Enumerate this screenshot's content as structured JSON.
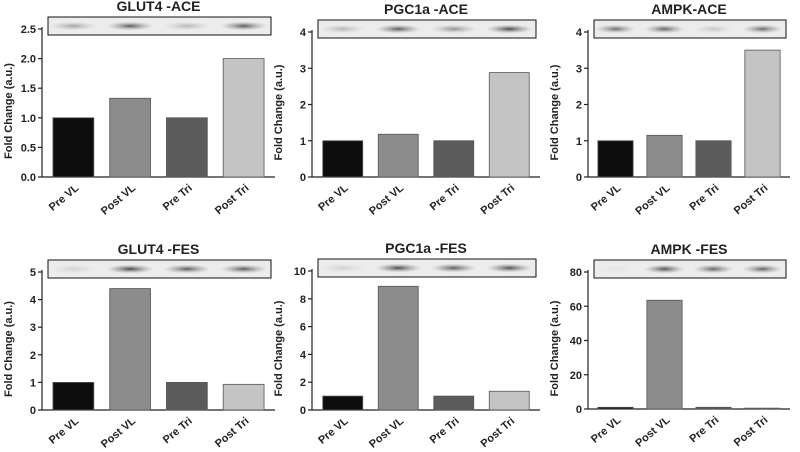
{
  "chart_data": [
    {
      "type": "bar",
      "title": "GLUT4 -ACE",
      "y_label": "Fold Change (a.u.)",
      "categories": [
        "Pre VL",
        "Post VL",
        "Pre Tri",
        "Post Tri"
      ],
      "values": [
        1.0,
        1.33,
        1.0,
        2.0
      ],
      "colors": [
        "#0d0d0d",
        "#8c8c8c",
        "#5c5c5c",
        "#c4c4c4"
      ],
      "ylim": [
        0,
        2.5
      ],
      "yticks": [
        {
          "value": 0,
          "label": "0.0"
        },
        0.5,
        {
          "value": 1,
          "label": "1.0"
        },
        1.5,
        {
          "value": 2,
          "label": "2.0"
        },
        2.5
      ]
    },
    {
      "type": "bar",
      "title": "PGC1a -ACE",
      "y_label": "Fold Change (a.u.)",
      "categories": [
        "Pre VL",
        "Post VL",
        "Pre Tri",
        "Post Tri"
      ],
      "values": [
        1.0,
        1.18,
        1.0,
        2.88
      ],
      "colors": [
        "#0d0d0d",
        "#8c8c8c",
        "#5c5c5c",
        "#c4c4c4"
      ],
      "ylim": [
        0,
        4
      ],
      "yticks": [
        0,
        1,
        2,
        3,
        4
      ]
    },
    {
      "type": "bar",
      "title": "AMPK-ACE",
      "y_label": "Fold Change (a.u.)",
      "categories": [
        "Pre VL",
        "Post VL",
        "Pre Tri",
        "Post Tri"
      ],
      "values": [
        1.0,
        1.15,
        1.0,
        3.5
      ],
      "colors": [
        "#0d0d0d",
        "#8c8c8c",
        "#5c5c5c",
        "#c4c4c4"
      ],
      "ylim": [
        0,
        4
      ],
      "yticks": [
        0,
        1,
        2,
        3,
        4
      ]
    },
    {
      "type": "bar",
      "title": "GLUT4 -FES",
      "y_label": "Fold Change (a.u.)",
      "categories": [
        "Pre VL",
        "Post VL",
        "Pre Tri",
        "Post Tri"
      ],
      "values": [
        1.0,
        4.4,
        1.0,
        0.93
      ],
      "colors": [
        "#0d0d0d",
        "#8c8c8c",
        "#5c5c5c",
        "#c4c4c4"
      ],
      "ylim": [
        0,
        5
      ],
      "yticks": [
        0,
        1,
        2,
        3,
        4,
        5
      ]
    },
    {
      "type": "bar",
      "title": "PGC1a -FES",
      "y_label": "Fold Change (a.u.)",
      "categories": [
        "Pre VL",
        "Post VL",
        "Pre Tri",
        "Post Tri"
      ],
      "values": [
        1.0,
        8.9,
        1.0,
        1.35
      ],
      "colors": [
        "#0d0d0d",
        "#8c8c8c",
        "#5c5c5c",
        "#c4c4c4"
      ],
      "ylim": [
        0,
        10
      ],
      "yticks": [
        0,
        2,
        4,
        6,
        8,
        10
      ]
    },
    {
      "type": "bar",
      "title": "AMPK -FES",
      "y_label": "Fold Change (a.u.)",
      "categories": [
        "Pre VL",
        "Post VL",
        "Pre Tri",
        "Post Tri"
      ],
      "values": [
        1.0,
        63.5,
        1.0,
        0.5
      ],
      "colors": [
        "#0d0d0d",
        "#8c8c8c",
        "#5c5c5c",
        "#c4c4c4"
      ],
      "ylim": [
        0,
        80
      ],
      "yticks": [
        0,
        20,
        40,
        60,
        80
      ]
    }
  ]
}
